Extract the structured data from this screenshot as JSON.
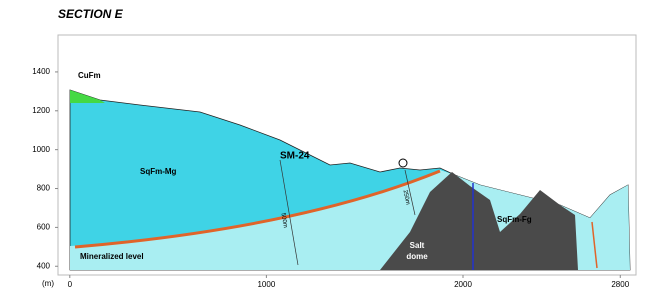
{
  "title": "SECTION E",
  "axes": {
    "unit": "(m)",
    "xlim": [
      -60,
      2880
    ],
    "ylim": [
      355,
      1590
    ],
    "xticks": [
      0,
      1000,
      2000,
      2800
    ],
    "yticks": [
      400,
      600,
      800,
      1000,
      1200,
      1400
    ]
  },
  "labels": {
    "cufm": "CuFm",
    "sqfm_mg": "SqFm-Mg",
    "well": "SM-24",
    "mineralized": "Mineralized level",
    "salt": "Salt",
    "dome": "dome",
    "sqfm_fg": "SqFm-Fg",
    "depth1": "500m",
    "depth2": "250m"
  }
}
